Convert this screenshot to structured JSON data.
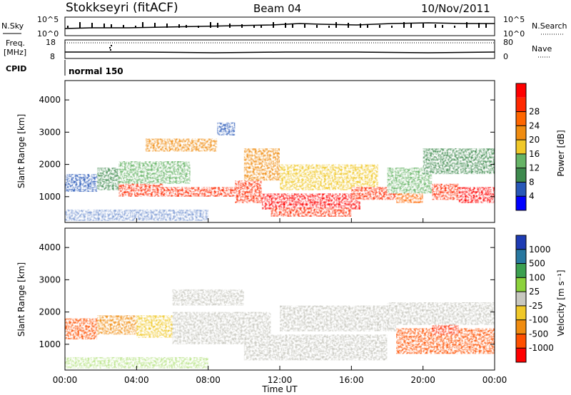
{
  "header": {
    "station": "Stokkseyri (fitACF)",
    "beam": "Beam 04",
    "date": "10/Nov/2011"
  },
  "strip": {
    "nsky_label": "N.Sky",
    "nsky_ticks": [
      "10^5",
      "10^0"
    ],
    "nsearch_label": "N.Search",
    "freq_label_top": "Freq.",
    "freq_label_unit": "[MHz]",
    "freq_ticks": [
      "18",
      "8"
    ],
    "nave_label": "Nave",
    "nave_ticks": [
      "80",
      "0"
    ],
    "cpid_label": "CPID",
    "cpid_value": "normal 150"
  },
  "chart_data": [
    {
      "type": "heatmap",
      "name": "power-panel",
      "ylabel": "Slant Range [km]",
      "yticks": [
        1000,
        2000,
        3000,
        4000
      ],
      "ylim": [
        200,
        4600
      ],
      "xlim": [
        0,
        24
      ],
      "colorbar": {
        "label": "Power [dB]",
        "ticks": [
          "4",
          "8",
          "12",
          "16",
          "20",
          "24",
          "28"
        ],
        "colors": [
          "#0000ff",
          "#2858b8",
          "#3e8a4e",
          "#66b466",
          "#f0c828",
          "#f08c10",
          "#ff6600",
          "#ff2800",
          "#ff0000"
        ]
      },
      "regions": [
        {
          "t0": 0.0,
          "t1": 1.8,
          "r0": 1150,
          "r1": 1700,
          "color": "#2858b8"
        },
        {
          "t0": 1.8,
          "t1": 3.0,
          "r0": 1200,
          "r1": 1900,
          "color": "#3e8a4e"
        },
        {
          "t0": 3.0,
          "t1": 5.5,
          "r0": 1000,
          "r1": 1500,
          "color": "#ff2800"
        },
        {
          "t0": 3.0,
          "t1": 7.0,
          "r0": 1400,
          "r1": 2100,
          "color": "#66b466"
        },
        {
          "t0": 4.5,
          "t1": 8.5,
          "r0": 2400,
          "r1": 2800,
          "color": "#f08c10"
        },
        {
          "t0": 5.5,
          "t1": 9.5,
          "r0": 1000,
          "r1": 1300,
          "color": "#ff2800"
        },
        {
          "t0": 8.5,
          "t1": 9.5,
          "r0": 2900,
          "r1": 3300,
          "color": "#2858b8"
        },
        {
          "t0": 9.5,
          "t1": 11.0,
          "r0": 800,
          "r1": 1500,
          "color": "#ff2800"
        },
        {
          "t0": 10.0,
          "t1": 12.0,
          "r0": 1500,
          "r1": 2500,
          "color": "#f08c10"
        },
        {
          "t0": 11.0,
          "t1": 16.5,
          "r0": 600,
          "r1": 1100,
          "color": "#ff0000"
        },
        {
          "t0": 11.5,
          "t1": 16.0,
          "r0": 380,
          "r1": 650,
          "color": "#ff2800"
        },
        {
          "t0": 12.0,
          "t1": 17.5,
          "r0": 1200,
          "r1": 2000,
          "color": "#f0c828"
        },
        {
          "t0": 16.0,
          "t1": 18.5,
          "r0": 900,
          "r1": 1300,
          "color": "#ff2800"
        },
        {
          "t0": 18.0,
          "t1": 20.5,
          "r0": 1100,
          "r1": 1900,
          "color": "#66b466"
        },
        {
          "t0": 18.5,
          "t1": 20.0,
          "r0": 800,
          "r1": 1100,
          "color": "#ff6600"
        },
        {
          "t0": 20.5,
          "t1": 22.0,
          "r0": 900,
          "r1": 1400,
          "color": "#ff2800"
        },
        {
          "t0": 22.0,
          "t1": 24.0,
          "r0": 800,
          "r1": 1300,
          "color": "#ff0000"
        },
        {
          "t0": 20.0,
          "t1": 24.0,
          "r0": 1700,
          "r1": 2500,
          "color": "#3e8a4e"
        }
      ]
    },
    {
      "type": "heatmap",
      "name": "velocity-panel",
      "ylabel": "Slant Range [km]",
      "yticks": [
        1000,
        2000,
        3000,
        4000
      ],
      "ylim": [
        200,
        4600
      ],
      "xlim": [
        0,
        24
      ],
      "xticks": [
        "00:00",
        "04:00",
        "08:00",
        "12:00",
        "16:00",
        "20:00",
        "00:00"
      ],
      "xlabel": "Time UT",
      "colorbar": {
        "label": "Velocity [m s⁻¹]",
        "ticks": [
          "1000",
          "500",
          "100",
          "25",
          "-25",
          "-100",
          "-500",
          "-1000"
        ],
        "colors": [
          "#1e3cb4",
          "#2878a0",
          "#3ca050",
          "#8cd23c",
          "#c8c8c0",
          "#f0c828",
          "#f08c10",
          "#ff5000",
          "#ff0000"
        ]
      },
      "regions": [
        {
          "t0": 0.0,
          "t1": 1.8,
          "r0": 1150,
          "r1": 1800,
          "color": "#ff5000"
        },
        {
          "t0": 1.8,
          "t1": 4.0,
          "r0": 1300,
          "r1": 1900,
          "color": "#f08c10"
        },
        {
          "t0": 4.0,
          "t1": 6.0,
          "r0": 1200,
          "r1": 1900,
          "color": "#f0c828"
        },
        {
          "t0": 6.0,
          "t1": 11.5,
          "r0": 1000,
          "r1": 2000,
          "color": "#c8c8c0"
        },
        {
          "t0": 6.0,
          "t1": 10.0,
          "r0": 2200,
          "r1": 2700,
          "color": "#c8c8c0"
        },
        {
          "t0": 10.0,
          "t1": 18.0,
          "r0": 500,
          "r1": 1300,
          "color": "#c8c8c0"
        },
        {
          "t0": 12.0,
          "t1": 18.5,
          "r0": 1400,
          "r1": 2200,
          "color": "#c8c8c0"
        },
        {
          "t0": 18.5,
          "t1": 24.0,
          "r0": 700,
          "r1": 1500,
          "color": "#ff5000"
        },
        {
          "t0": 20.5,
          "t1": 22.0,
          "r0": 1300,
          "r1": 1900,
          "color": "#ff2800"
        },
        {
          "t0": 18.0,
          "t1": 24.0,
          "r0": 1600,
          "r1": 2300,
          "color": "#c8c8c0"
        }
      ]
    }
  ]
}
